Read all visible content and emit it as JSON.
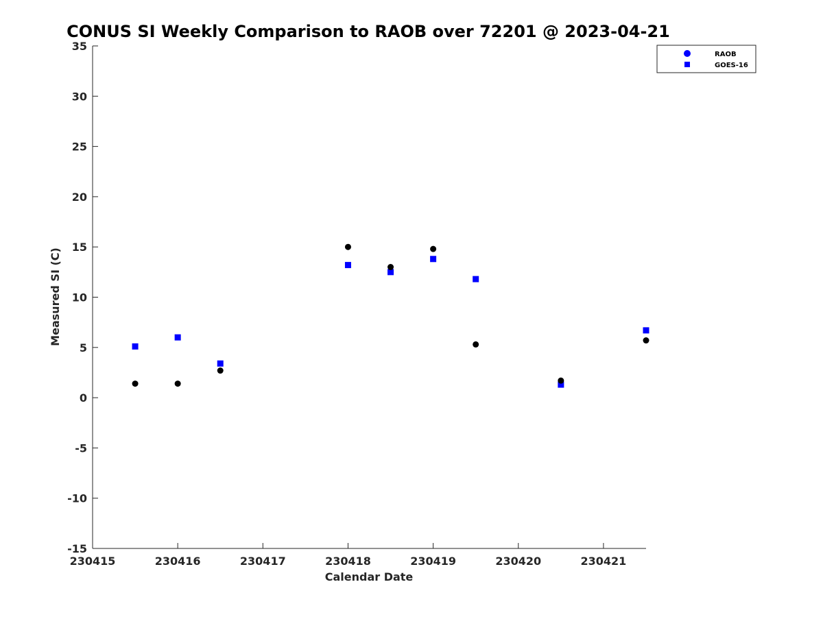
{
  "chart_data": {
    "type": "scatter",
    "title": "CONUS SI Weekly Comparison to RAOB over 72201 @ 2023-04-21",
    "xlabel": "Calendar Date",
    "ylabel": "Measured SI (C)",
    "xlim": [
      230415,
      230421.5
    ],
    "ylim": [
      -15,
      35
    ],
    "x_ticks": [
      230415,
      230416,
      230417,
      230418,
      230419,
      230420,
      230421
    ],
    "x_tick_labels": [
      "230415",
      "230416",
      "230417",
      "230418",
      "230419",
      "230420",
      "230421"
    ],
    "y_ticks": [
      -15,
      -10,
      -5,
      0,
      5,
      10,
      15,
      20,
      25,
      30,
      35
    ],
    "y_tick_labels": [
      "-15",
      "-10",
      "-5",
      "0",
      "5",
      "10",
      "15",
      "20",
      "25",
      "30",
      "35"
    ],
    "legend_position": "top-right",
    "series": [
      {
        "name": "RAOB",
        "marker": "circle",
        "color": "#0000ff",
        "point_color": "#000000",
        "x": [
          230415.5,
          230416,
          230416.5,
          230418,
          230418.5,
          230419,
          230419.5,
          230420.5,
          230421.5
        ],
        "values": [
          1.4,
          1.4,
          2.7,
          15.0,
          13.0,
          14.8,
          5.3,
          1.7,
          5.7
        ]
      },
      {
        "name": "GOES-16",
        "marker": "square",
        "color": "#0000ff",
        "point_color": "#0000ff",
        "x": [
          230415.5,
          230416,
          230416.5,
          230418,
          230418.5,
          230419,
          230419.5,
          230420.5,
          230421.5
        ],
        "values": [
          5.1,
          6.0,
          3.4,
          13.2,
          12.5,
          13.8,
          11.8,
          1.3,
          6.7
        ]
      }
    ]
  }
}
